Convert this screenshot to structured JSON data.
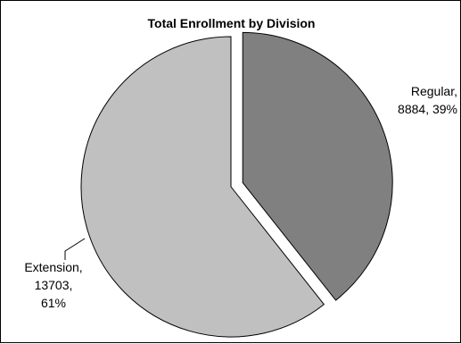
{
  "chart_data": {
    "type": "pie",
    "title": "Total Enrollment by Division",
    "slices": [
      {
        "label": "Regular",
        "value": 8884,
        "percent": 39,
        "color": "#808080",
        "label_lines": [
          "Regular,",
          "8884, 39%"
        ],
        "exploded": true
      },
      {
        "label": "Extension",
        "value": 13703,
        "percent": 61,
        "color": "#c0c0c0",
        "label_lines": [
          "Extension,",
          "13703,",
          "61%"
        ],
        "exploded": false
      }
    ],
    "start_angle_deg": 0,
    "direction": "clockwise",
    "outline_color": "#000000",
    "legend": "none"
  }
}
